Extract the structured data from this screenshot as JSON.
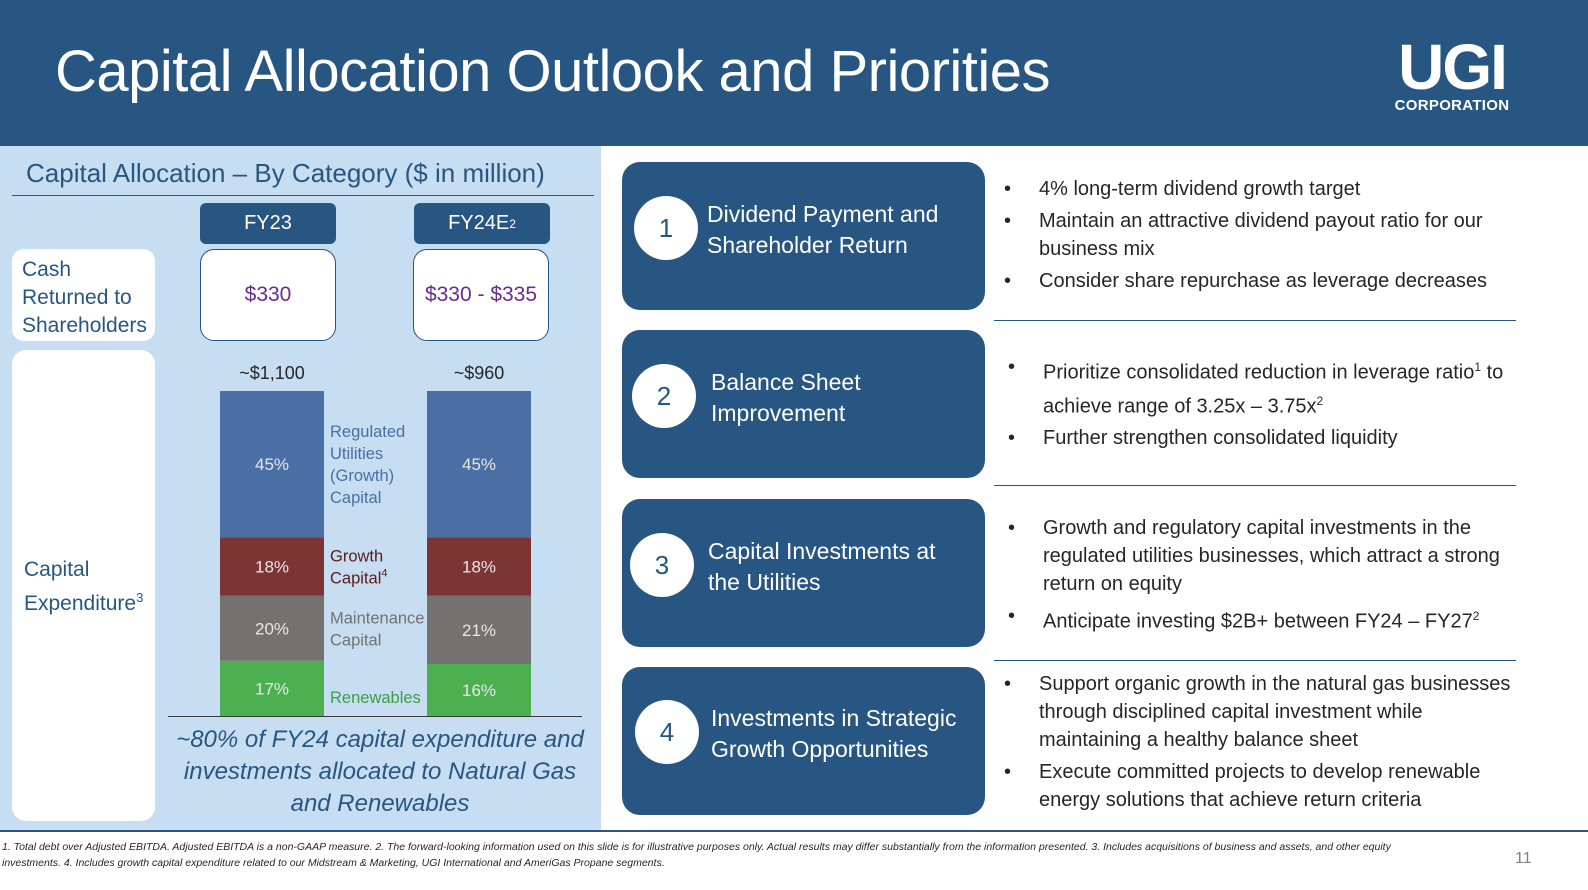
{
  "header": {
    "title": "Capital Allocation Outlook and Priorities",
    "logo_main": "UGI",
    "logo_sub": "CORPORATION"
  },
  "left_panel": {
    "heading": "Capital Allocation – By Category ($ in million)",
    "columns": [
      {
        "label": "FY23",
        "sup": ""
      },
      {
        "label": "FY24E",
        "sup": "2"
      }
    ],
    "cash_label": "Cash Returned to Shareholders",
    "cash_values": [
      "$330",
      "$330 - $335"
    ],
    "capex_label": "Capital Expenditure",
    "capex_sup": "3",
    "note": "~80% of FY24 capital expenditure and investments allocated to Natural Gas and Renewables"
  },
  "chart_data": {
    "type": "bar",
    "stacked": true,
    "categories": [
      "FY23",
      "FY24E"
    ],
    "totals": [
      "~$1,100",
      "~$960"
    ],
    "series": [
      {
        "name": "Renewables",
        "values": [
          17,
          16
        ],
        "color": "#4caf50"
      },
      {
        "name": "Maintenance Capital",
        "values": [
          20,
          21
        ],
        "color": "#767171"
      },
      {
        "name": "Growth Capital",
        "name_sup": "4",
        "values": [
          18,
          18
        ],
        "color": "#7b3533"
      },
      {
        "name": "Regulated Utilities (Growth) Capital",
        "values": [
          45,
          45
        ],
        "color": "#4a6fa5"
      }
    ],
    "value_unit": "%",
    "legend_placement": "between bars"
  },
  "priorities": [
    {
      "number": "1",
      "title": "Dividend Payment and Shareholder Return",
      "bullets": [
        {
          "text": "4% long-term dividend growth target"
        },
        {
          "text": "Maintain an attractive dividend payout ratio for our business mix"
        },
        {
          "text": "Consider share repurchase as leverage decreases"
        }
      ]
    },
    {
      "number": "2",
      "title": "Balance Sheet Improvement",
      "bullets": [
        {
          "text": "Prioritize consolidated reduction in leverage ratio",
          "sup": "1",
          "text2": " to achieve range of 3.25x – 3.75x",
          "sup2": "2"
        },
        {
          "text": "Further strengthen consolidated liquidity"
        }
      ]
    },
    {
      "number": "3",
      "title": "Capital Investments at the Utilities",
      "bullets": [
        {
          "text": "Growth and regulatory capital investments in the regulated utilities businesses, which attract a strong return on equity"
        },
        {
          "text": "Anticipate investing $2B+ between FY24 – FY27",
          "sup": "2"
        }
      ]
    },
    {
      "number": "4",
      "title": "Investments in Strategic Growth Opportunities",
      "bullets": [
        {
          "text": "Support organic growth in the natural gas businesses through disciplined capital investment while maintaining a healthy balance sheet"
        },
        {
          "text": "Execute committed projects to develop renewable energy solutions that achieve return criteria"
        }
      ]
    }
  ],
  "footer": {
    "footnote": "1. Total debt over Adjusted EBITDA. Adjusted EBITDA is a non-GAAP measure. 2. The forward-looking information used on this slide is for illustrative purposes only. Actual results may differ substantially from the information presented. 3. Includes acquisitions of business and assets, and other equity investments. 4. Includes growth capital expenditure related to our Midstream & Marketing, UGI International and AmeriGas Propane segments.",
    "page_number": "11"
  }
}
